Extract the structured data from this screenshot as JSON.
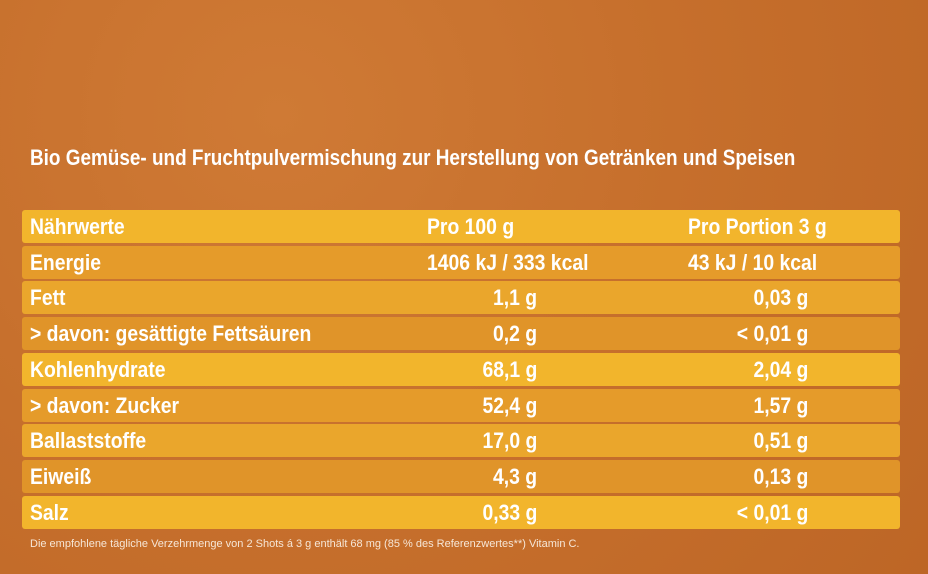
{
  "header": {
    "title": "Bio Gemüse- und Fruchtpulvermischung zur Herstellung von Getränken und Speisen"
  },
  "table": {
    "columns": [
      "Nährwerte",
      "Pro 100 g",
      "Pro Portion 3 g"
    ],
    "rows": [
      [
        "Energie",
        "1406 kJ / 333 kcal",
        "43 kJ / 10 kcal"
      ],
      [
        "Fett",
        "1,1 g",
        "0,03 g"
      ],
      [
        "> davon: gesättigte Fettsäuren",
        "0,2 g",
        "< 0,01 g"
      ],
      [
        "Kohlenhydrate",
        "68,1 g",
        "2,04 g"
      ],
      [
        "> davon: Zucker",
        "52,4 g",
        "1,57 g"
      ],
      [
        "Ballaststoffe",
        "17,0 g",
        "0,51 g"
      ],
      [
        "Eiweiß",
        "4,3 g",
        "0,13 g"
      ],
      [
        "Salz",
        "0,33 g",
        "< 0,01 g"
      ]
    ]
  },
  "footnote": "Die empfohlene tägliche Verzehrmenge von 2 Shots á 3 g enthält 68 mg (85 % des Referenzwertes**) Vitamin C."
}
